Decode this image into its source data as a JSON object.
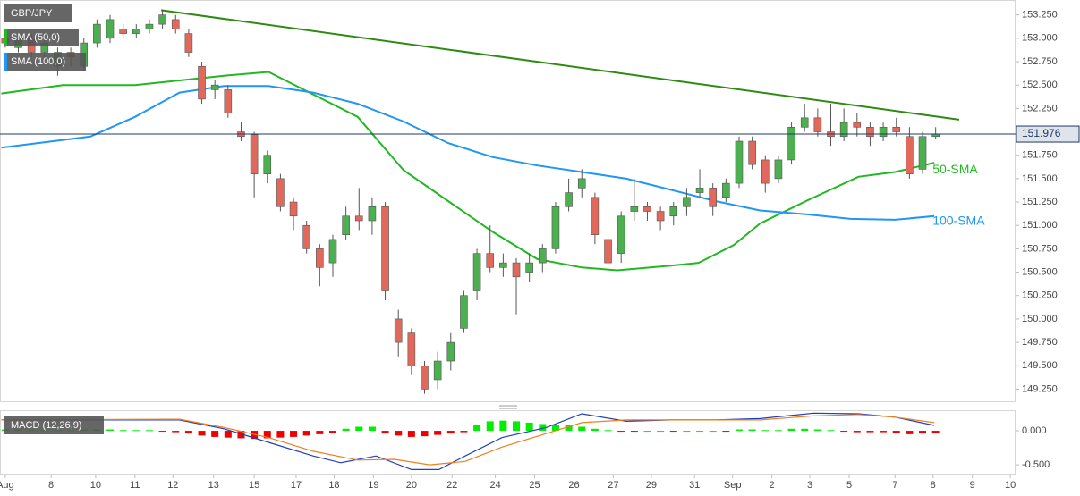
{
  "chart_data": [
    {
      "type": "candlestick",
      "title": "GBP/JPY",
      "open": [
        153.0,
        152.9,
        153.0,
        152.85,
        152.7,
        152.85,
        152.7,
        152.95,
        153.0,
        153.1,
        153.05,
        153.1,
        153.15,
        153.2,
        153.05,
        152.7,
        152.45,
        152.45,
        152.0,
        151.97,
        151.55,
        151.5,
        151.25,
        151.0,
        150.75,
        150.6,
        150.9,
        151.1,
        151.05,
        151.2,
        150.0,
        149.85,
        149.5,
        149.35,
        149.55,
        149.9,
        150.3,
        150.7,
        150.55,
        150.6,
        150.5,
        150.6,
        150.75,
        151.2,
        151.4,
        151.3,
        150.85,
        150.7,
        151.15,
        151.2,
        151.15,
        151.1,
        151.2,
        151.35,
        151.4,
        151.3,
        151.45,
        151.9,
        151.7,
        151.5,
        151.7,
        152.05,
        152.15,
        152.0,
        151.95,
        152.1,
        152.05,
        151.95,
        152.05,
        151.95,
        151.6,
        151.95
      ],
      "high": [
        153.05,
        153.05,
        153.05,
        153.0,
        152.9,
        152.9,
        153.0,
        153.2,
        153.25,
        153.15,
        153.15,
        153.2,
        153.3,
        153.25,
        153.1,
        152.75,
        152.55,
        152.5,
        152.1,
        152.0,
        151.8,
        151.55,
        151.3,
        151.05,
        150.8,
        150.9,
        151.2,
        151.4,
        151.3,
        151.25,
        150.1,
        149.9,
        149.55,
        149.65,
        149.85,
        150.3,
        150.75,
        151.0,
        150.7,
        150.65,
        150.7,
        150.8,
        151.25,
        151.5,
        151.6,
        151.35,
        150.9,
        151.15,
        151.5,
        151.25,
        151.2,
        151.25,
        151.4,
        151.6,
        151.45,
        151.5,
        151.95,
        151.95,
        151.75,
        151.75,
        152.1,
        152.3,
        152.25,
        152.3,
        152.25,
        152.2,
        152.1,
        152.1,
        152.15,
        152.05,
        152.0,
        152.05
      ],
      "low": [
        152.9,
        152.85,
        152.8,
        152.8,
        152.6,
        152.7,
        152.65,
        152.9,
        152.95,
        153.0,
        153.0,
        153.05,
        153.1,
        153.05,
        152.8,
        152.3,
        152.35,
        152.15,
        151.9,
        151.3,
        151.45,
        151.15,
        150.95,
        150.7,
        150.35,
        150.45,
        150.85,
        150.95,
        150.9,
        150.2,
        149.6,
        149.4,
        149.2,
        149.25,
        149.45,
        149.85,
        150.2,
        150.5,
        150.45,
        150.05,
        150.4,
        150.5,
        150.7,
        151.15,
        151.3,
        150.8,
        150.5,
        150.6,
        151.05,
        151.05,
        150.95,
        151.0,
        151.1,
        151.3,
        151.1,
        151.25,
        151.4,
        151.6,
        151.35,
        151.45,
        151.65,
        152.0,
        151.95,
        151.85,
        151.9,
        151.95,
        151.85,
        151.9,
        151.95,
        151.5,
        151.55,
        151.92
      ],
      "close": [
        152.95,
        153.0,
        152.85,
        152.95,
        152.85,
        152.8,
        152.95,
        153.15,
        153.2,
        153.05,
        153.1,
        153.15,
        153.25,
        153.1,
        152.85,
        152.35,
        152.5,
        152.2,
        151.95,
        151.55,
        151.75,
        151.2,
        151.1,
        150.75,
        150.55,
        150.85,
        151.1,
        151.05,
        151.2,
        150.3,
        149.75,
        149.5,
        149.25,
        149.55,
        149.75,
        150.25,
        150.7,
        150.55,
        150.6,
        150.45,
        150.6,
        150.75,
        151.2,
        151.35,
        151.5,
        150.9,
        150.6,
        151.1,
        151.2,
        151.15,
        151.05,
        151.2,
        151.3,
        151.4,
        151.2,
        151.45,
        151.9,
        151.65,
        151.45,
        151.7,
        152.05,
        152.15,
        152.0,
        151.95,
        152.1,
        152.05,
        151.95,
        152.05,
        152.0,
        151.55,
        151.95,
        151.976
      ],
      "up_color": "#4caf50",
      "down_color": "#e0695b",
      "series": [
        {
          "name": "SMA (50,0)",
          "end_label": "50-SMA",
          "color": "#21b821",
          "x": [
            -0.3,
            4.4,
            9.9,
            16.7,
            20.1,
            23.5,
            26.9,
            30.4,
            33.8,
            37.2,
            40.6,
            44.0,
            46.7,
            50.8,
            52.9,
            55.6,
            57.6,
            61.1,
            65.1,
            67.9,
            70.9
          ],
          "values": [
            152.41,
            152.5,
            152.5,
            152.6,
            152.64,
            152.4,
            152.16,
            151.59,
            151.26,
            150.93,
            150.64,
            150.55,
            150.52,
            150.57,
            150.6,
            150.79,
            151.02,
            151.26,
            151.52,
            151.57,
            151.67
          ]
        },
        {
          "name": "SMA (100,0)",
          "end_label": "100-SMA",
          "color": "#2196f3",
          "x": [
            -0.3,
            6.5,
            9.9,
            13.3,
            16.7,
            20.1,
            23.5,
            26.9,
            30.4,
            33.8,
            37.2,
            40.6,
            44.0,
            47.4,
            50.8,
            54.2,
            57.6,
            61.1,
            64.5,
            67.9,
            70.9
          ],
          "values": [
            151.83,
            151.95,
            152.16,
            152.42,
            152.49,
            152.49,
            152.42,
            152.3,
            152.11,
            151.88,
            151.73,
            151.64,
            151.57,
            151.5,
            151.38,
            151.26,
            151.16,
            151.12,
            151.07,
            151.06,
            151.1
          ]
        }
      ],
      "trendline": {
        "color": "#2e8b12",
        "x": [
          11.9,
          72.8
        ],
        "values": [
          153.3,
          152.13
        ]
      },
      "last_price": 151.976,
      "xlim": [
        -0.4,
        77.1
      ],
      "ylim": [
        149.13,
        153.39
      ],
      "yticks": [
        {
          "value": 149.25,
          "label": "149.250"
        },
        {
          "value": 149.5,
          "label": "149.500"
        },
        {
          "value": 149.75,
          "label": "149.750"
        },
        {
          "value": 150,
          "label": "150.000"
        },
        {
          "value": 150.25,
          "label": "150.250"
        },
        {
          "value": 150.5,
          "label": "150.500"
        },
        {
          "value": 150.75,
          "label": "150.750"
        },
        {
          "value": 151,
          "label": "151.000"
        },
        {
          "value": 151.25,
          "label": "151.250"
        },
        {
          "value": 151.5,
          "label": "151.500"
        },
        {
          "value": 151.75,
          "label": "151.750"
        },
        {
          "value": 152,
          "label": "152.000"
        },
        {
          "value": 152.25,
          "label": "152.250"
        },
        {
          "value": 152.5,
          "label": "152.500"
        },
        {
          "value": 152.75,
          "label": "152.750"
        },
        {
          "value": 153,
          "label": "153.000"
        },
        {
          "value": 153.25,
          "label": "153.250"
        }
      ]
    },
    {
      "type": "macd",
      "title": "MACD (12,26,9)",
      "histogram": [
        0.02,
        0.02,
        0.01,
        0.01,
        0.01,
        0.01,
        0.02,
        0.02,
        0.02,
        0.01,
        0.01,
        0.01,
        -0.01,
        -0.02,
        -0.04,
        -0.07,
        -0.09,
        -0.1,
        -0.11,
        -0.12,
        -0.11,
        -0.1,
        -0.09,
        -0.07,
        -0.05,
        -0.03,
        0.03,
        0.06,
        0.06,
        -0.04,
        -0.07,
        -0.09,
        -0.08,
        -0.06,
        -0.04,
        -0.02,
        0.08,
        0.14,
        0.15,
        0.14,
        0.12,
        0.1,
        0.09,
        0.08,
        0.06,
        0.03,
        0.01,
        -0.01,
        -0.01,
        0,
        0,
        -0.01,
        0,
        0,
        0,
        -0.01,
        0.02,
        0.02,
        0.01,
        0.01,
        0.03,
        0.03,
        0.02,
        0.01,
        -0.01,
        -0.02,
        -0.02,
        -0.02,
        -0.03,
        -0.05,
        -0.04,
        -0.03
      ],
      "up_color": "#00ee00",
      "down_color": "#ee0000",
      "lines": [
        {
          "color": "#1f3fbf",
          "x": [
            -0.3,
            13.3,
            16.7,
            20.1,
            23.5,
            25.6,
            28.3,
            31.0,
            33.1,
            35.1,
            37.9,
            41.3,
            44.0,
            47.4,
            50.8,
            54.2,
            57.6,
            61.7,
            65.1,
            67.9,
            70.9
          ],
          "values": [
            0.16,
            0.16,
            0.03,
            -0.17,
            -0.37,
            -0.47,
            -0.37,
            -0.57,
            -0.57,
            -0.37,
            -0.1,
            0.05,
            0.25,
            0.14,
            0.16,
            0.16,
            0.18,
            0.26,
            0.25,
            0.2,
            0.08
          ]
        },
        {
          "color": "#f07f1e",
          "x": [
            -0.3,
            13.3,
            16.7,
            20.1,
            23.5,
            26.9,
            29.7,
            32.4,
            35.1,
            37.9,
            41.3,
            44.0,
            47.4,
            54.2,
            57.6,
            61.7,
            65.1,
            67.9,
            70.9
          ],
          "values": [
            0.16,
            0.17,
            0.05,
            -0.1,
            -0.3,
            -0.43,
            -0.42,
            -0.5,
            -0.45,
            -0.24,
            -0.04,
            0.12,
            0.16,
            0.16,
            0.16,
            0.22,
            0.24,
            0.2,
            0.12
          ]
        }
      ],
      "xlim": [
        -0.4,
        77.1
      ],
      "ylim": [
        -0.63,
        0.29
      ],
      "yticks": [
        {
          "value": 0,
          "label": "0.000"
        },
        {
          "value": -0.5,
          "label": "-0.500"
        }
      ],
      "xticks": [
        {
          "value": 0,
          "label": "Aug"
        },
        {
          "value": 3.5,
          "label": "8"
        },
        {
          "value": 6.9,
          "label": "10"
        },
        {
          "value": 9.9,
          "label": "11"
        },
        {
          "value": 12.8,
          "label": "12"
        },
        {
          "value": 15.9,
          "label": "13"
        },
        {
          "value": 19.0,
          "label": "15"
        },
        {
          "value": 22.2,
          "label": "17"
        },
        {
          "value": 25.1,
          "label": "18"
        },
        {
          "value": 28.1,
          "label": "19"
        },
        {
          "value": 31.0,
          "label": "20"
        },
        {
          "value": 34.1,
          "label": "22"
        },
        {
          "value": 37.4,
          "label": "24"
        },
        {
          "value": 40.4,
          "label": "25"
        },
        {
          "value": 43.4,
          "label": "26"
        },
        {
          "value": 46.4,
          "label": "27"
        },
        {
          "value": 49.3,
          "label": "29"
        },
        {
          "value": 52.6,
          "label": "31"
        },
        {
          "value": 55.5,
          "label": "Sep"
        },
        {
          "value": 58.5,
          "label": "2"
        },
        {
          "value": 61.4,
          "label": "3"
        },
        {
          "value": 64.4,
          "label": "5"
        },
        {
          "value": 67.9,
          "label": "7"
        },
        {
          "value": 70.8,
          "label": "8"
        },
        {
          "value": 73.8,
          "label": "9"
        },
        {
          "value": 76.7,
          "label": "10"
        }
      ]
    }
  ]
}
